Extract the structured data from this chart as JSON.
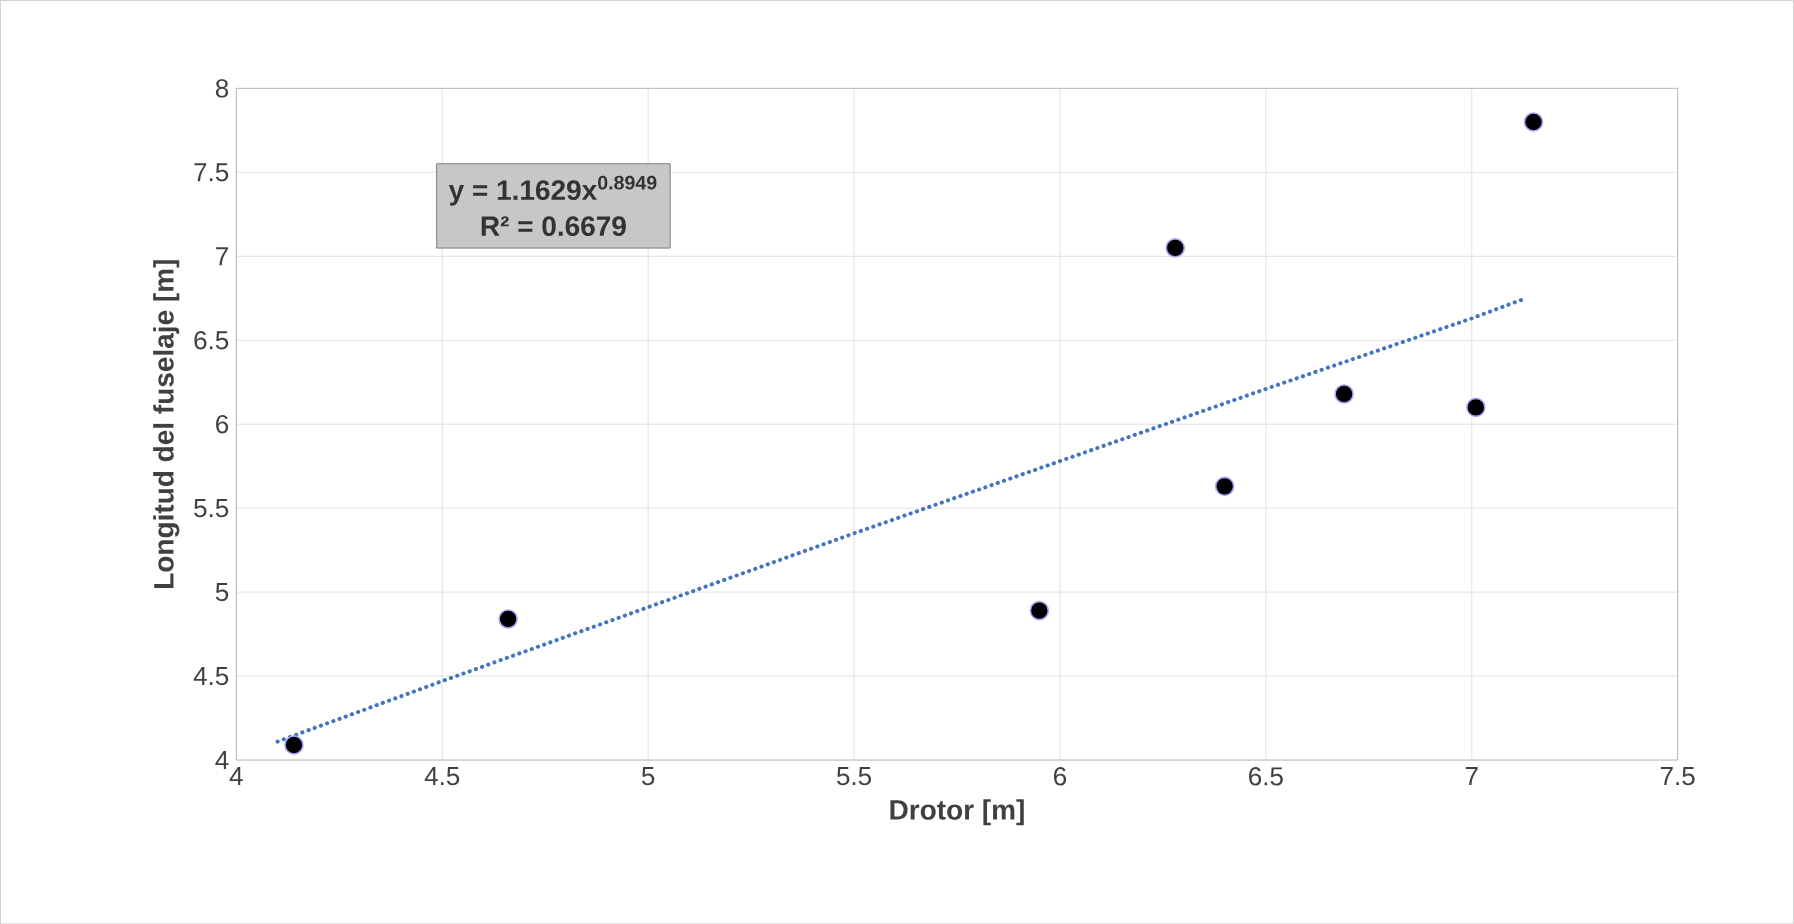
{
  "chart_data": {
    "type": "scatter",
    "xlabel": "Drotor [m]",
    "ylabel": "Longitud del fuselaje [m]",
    "xlim": [
      4,
      7.5
    ],
    "xticks": [
      4,
      4.5,
      5,
      5.5,
      6,
      6.5,
      7,
      7.5
    ],
    "ylim": [
      4,
      8
    ],
    "yticks": [
      4,
      4.5,
      5,
      5.5,
      6,
      6.5,
      7,
      7.5,
      8
    ],
    "grid": true,
    "annotations": [
      "y = 1.1629x$^{0.8949}$",
      "R² = 0.6679"
    ],
    "series": [
      {
        "marker": "circle",
        "color": "#000000",
        "x": [
          4.14,
          4.66,
          5.95,
          6.28,
          6.4,
          6.69,
          7.01,
          7.15
        ],
        "values": [
          4.09,
          4.84,
          4.89,
          7.05,
          5.63,
          6.18,
          6.1,
          7.8
        ]
      },
      {
        "type": "line",
        "marker": "none",
        "color": "#4472c4",
        "line_style": "dotted",
        "x": [
          4.1,
          4.5,
          5,
          5.5,
          6,
          6.5,
          7,
          7.12
        ],
        "values": [
          4.11,
          4.47,
          4.91,
          5.35,
          5.78,
          6.21,
          6.63,
          6.74
        ]
      }
    ]
  }
}
